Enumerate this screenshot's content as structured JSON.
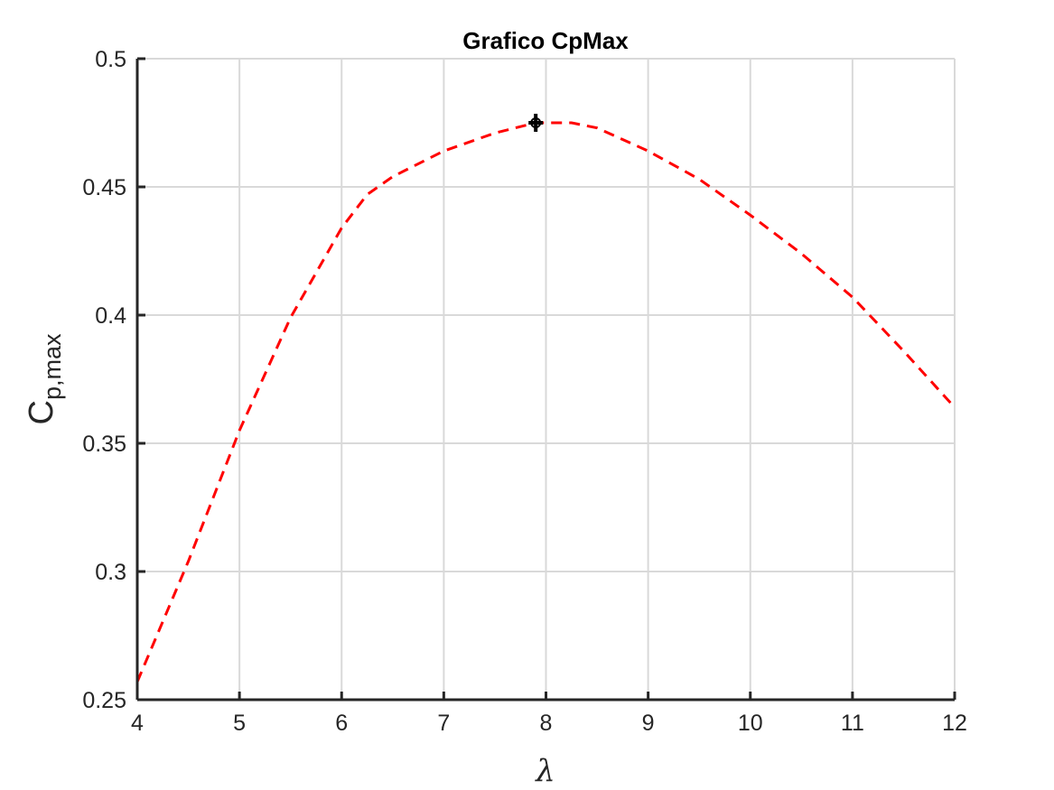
{
  "chart_data": {
    "type": "line",
    "title": "Grafico CpMax",
    "xlabel": "λ",
    "ylabel": {
      "base": "C",
      "subscript": "p,max"
    },
    "xlim": [
      4,
      12
    ],
    "ylim": [
      0.25,
      0.5
    ],
    "xticks": [
      4,
      5,
      6,
      7,
      8,
      9,
      10,
      11,
      12
    ],
    "yticks": [
      0.25,
      0.3,
      0.35,
      0.4,
      0.45,
      0.5
    ],
    "ytick_labels": [
      "0.25",
      "0.3",
      "0.35",
      "0.4",
      "0.45",
      "0.5"
    ],
    "xtick_labels": [
      "4",
      "5",
      "6",
      "7",
      "8",
      "9",
      "10",
      "11",
      "12"
    ],
    "grid": true,
    "series": [
      {
        "style": "dashed",
        "color": "#ff0000",
        "x": [
          4.0,
          4.5,
          5.0,
          5.5,
          6.0,
          6.25,
          6.5,
          7.0,
          7.5,
          7.9,
          8.25,
          8.5,
          9.0,
          9.5,
          10.0,
          10.5,
          11.0,
          11.5,
          12.0
        ],
        "y": [
          0.257,
          0.304,
          0.355,
          0.399,
          0.434,
          0.447,
          0.454,
          0.464,
          0.471,
          0.475,
          0.475,
          0.473,
          0.464,
          0.453,
          0.439,
          0.424,
          0.407,
          0.386,
          0.364
        ]
      }
    ],
    "markers": [
      {
        "symbol": "plus",
        "color": "#000000",
        "x": 7.9,
        "y": 0.475
      }
    ]
  }
}
